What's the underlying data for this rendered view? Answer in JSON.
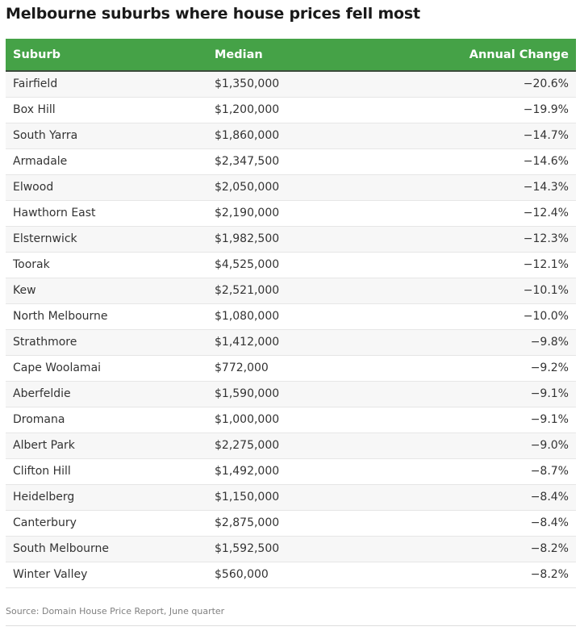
{
  "title": "Melbourne suburbs where house prices fell most",
  "source": "Source: Domain House Price Report, June quarter",
  "colors": {
    "header_bg": "#45a247",
    "header_text": "#ffffff",
    "stripe": "#f7f7f7"
  },
  "chart_data": {
    "type": "table",
    "columns": [
      "Suburb",
      "Median",
      "Annual Change"
    ],
    "rows": [
      [
        "Fairfield",
        "$1,350,000",
        "−20.6%"
      ],
      [
        "Box Hill",
        "$1,200,000",
        "−19.9%"
      ],
      [
        "South Yarra",
        "$1,860,000",
        "−14.7%"
      ],
      [
        "Armadale",
        "$2,347,500",
        "−14.6%"
      ],
      [
        "Elwood",
        "$2,050,000",
        "−14.3%"
      ],
      [
        "Hawthorn East",
        "$2,190,000",
        "−12.4%"
      ],
      [
        "Elsternwick",
        "$1,982,500",
        "−12.3%"
      ],
      [
        "Toorak",
        "$4,525,000",
        "−12.1%"
      ],
      [
        "Kew",
        "$2,521,000",
        "−10.1%"
      ],
      [
        "North Melbourne",
        "$1,080,000",
        "−10.0%"
      ],
      [
        "Strathmore",
        "$1,412,000",
        "−9.8%"
      ],
      [
        "Cape Woolamai",
        "$772,000",
        "−9.2%"
      ],
      [
        "Aberfeldie",
        "$1,590,000",
        "−9.1%"
      ],
      [
        "Dromana",
        "$1,000,000",
        "−9.1%"
      ],
      [
        "Albert Park",
        "$2,275,000",
        "−9.0%"
      ],
      [
        "Clifton Hill",
        "$1,492,000",
        "−8.7%"
      ],
      [
        "Heidelberg",
        "$1,150,000",
        "−8.4%"
      ],
      [
        "Canterbury",
        "$2,875,000",
        "−8.4%"
      ],
      [
        "South Melbourne",
        "$1,592,500",
        "−8.2%"
      ],
      [
        "Winter Valley",
        "$560,000",
        "−8.2%"
      ]
    ]
  }
}
